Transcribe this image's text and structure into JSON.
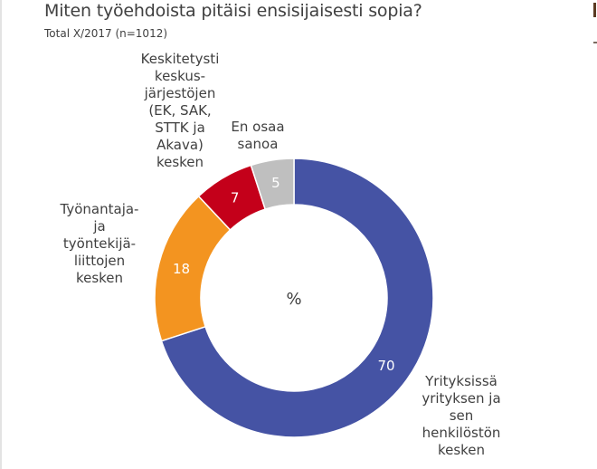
{
  "header": {
    "title": "Miten työehdoista pitäisi ensisijaisesti sopia?",
    "subtitle": "Total X/2017  (n=1012)"
  },
  "chart_data": {
    "type": "pie",
    "variant": "donut",
    "title": "Miten työehdoista pitäisi ensisijaisesti sopia?",
    "subtitle": "Total X/2017  (n=1012)",
    "center_label": "%",
    "unit": "%",
    "start_angle_deg": 0,
    "direction": "clockwise",
    "slices": [
      {
        "label_lines": [
          "Yrityksissä",
          "yrityksen ja",
          "sen",
          "henkilöstön",
          "kesken"
        ],
        "value": 70,
        "value_label": "70",
        "color": "#4553A4"
      },
      {
        "label_lines": [
          "Työnantaja-",
          "ja",
          "työntekijä-",
          "liittojen",
          "kesken"
        ],
        "value": 18,
        "value_label": "18",
        "color": "#F39420"
      },
      {
        "label_lines": [
          "Keskitetysti",
          "keskus-",
          "järjestöjen",
          "(EK, SAK,",
          "STTK ja",
          "Akava)",
          "kesken"
        ],
        "value": 7,
        "value_label": "7",
        "color": "#C4001A"
      },
      {
        "label_lines": [
          "En osaa",
          "sanoa"
        ],
        "value": 5,
        "value_label": "5",
        "color": "#BFBFBF"
      }
    ]
  }
}
